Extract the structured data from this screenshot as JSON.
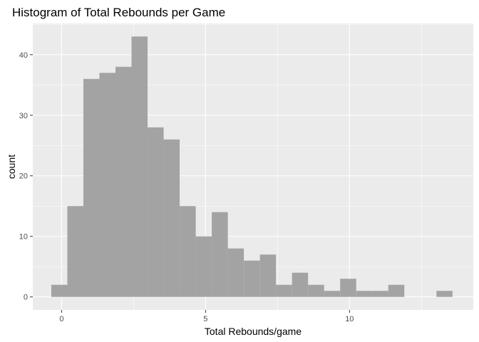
{
  "chart_data": {
    "type": "bar",
    "title": "Histogram of Total Rebounds per Game",
    "xlabel": "Total Rebounds/game",
    "ylabel": "count",
    "xlim": [
      -1.0,
      14.3
    ],
    "ylim": [
      -2.15,
      45.15
    ],
    "x_ticks": [
      0,
      5,
      10
    ],
    "y_ticks": [
      0,
      10,
      20,
      30,
      40
    ],
    "bin_width": 0.5574,
    "bins": [
      {
        "x": -0.0787,
        "count": 2
      },
      {
        "x": 0.4787,
        "count": 15
      },
      {
        "x": 1.0361,
        "count": 36
      },
      {
        "x": 1.5935,
        "count": 37
      },
      {
        "x": 2.1509,
        "count": 38
      },
      {
        "x": 2.7083,
        "count": 43
      },
      {
        "x": 3.2657,
        "count": 28
      },
      {
        "x": 3.8231,
        "count": 26
      },
      {
        "x": 4.3805,
        "count": 15
      },
      {
        "x": 4.9379,
        "count": 10
      },
      {
        "x": 5.4953,
        "count": 14
      },
      {
        "x": 6.0527,
        "count": 8
      },
      {
        "x": 6.6101,
        "count": 6
      },
      {
        "x": 7.1675,
        "count": 7
      },
      {
        "x": 7.7249,
        "count": 2
      },
      {
        "x": 8.2823,
        "count": 4
      },
      {
        "x": 8.8397,
        "count": 2
      },
      {
        "x": 9.3971,
        "count": 1
      },
      {
        "x": 9.9545,
        "count": 3
      },
      {
        "x": 10.5119,
        "count": 1
      },
      {
        "x": 11.0693,
        "count": 1
      },
      {
        "x": 11.6267,
        "count": 2
      },
      {
        "x": 12.1841,
        "count": 0
      },
      {
        "x": 12.7415,
        "count": 0
      },
      {
        "x": 13.2989,
        "count": 1
      }
    ],
    "grid": true,
    "legend": "none",
    "colors": {
      "panel": "#ebebeb",
      "grid_major": "#ffffff",
      "bar_fill": "#a3a3a3",
      "tick": "#333333"
    }
  }
}
